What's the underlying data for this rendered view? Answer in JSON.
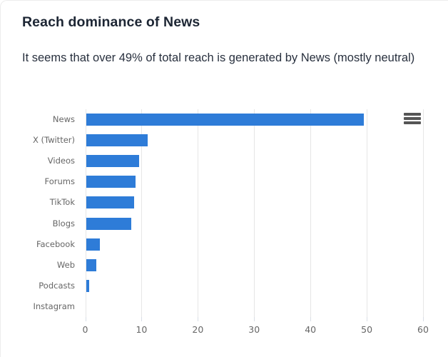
{
  "header": {
    "title": "Reach dominance of News",
    "subtitle": "It seems that over 49% of total reach is generated by News (mostly neutral)"
  },
  "icons": {
    "chart_context_menu": "hamburger-menu-icon"
  },
  "colors": {
    "bar_blue": "#2e7cd8",
    "gridline": "#e6e6e6",
    "axis_label": "#666666",
    "title_text": "#1d2634",
    "menu_icon": "#555555"
  },
  "chart_data": {
    "type": "bar",
    "orientation": "horizontal",
    "title": "Reach dominance of News",
    "subtitle": "It seems that over 49% of total reach is generated by News (mostly neutral)",
    "categories": [
      "News",
      "X (Twitter)",
      "Videos",
      "Forums",
      "TikTok",
      "Blogs",
      "Facebook",
      "Web",
      "Podcasts",
      "Instagram"
    ],
    "values": [
      49.3,
      10.9,
      9.4,
      8.8,
      8.6,
      8.1,
      2.5,
      1.8,
      0.6,
      0
    ],
    "xlabel": "",
    "ylabel": "",
    "xlim": [
      0,
      60
    ],
    "xticks": [
      0,
      10,
      20,
      30,
      40,
      50,
      60
    ],
    "grid": true,
    "legend": false
  }
}
